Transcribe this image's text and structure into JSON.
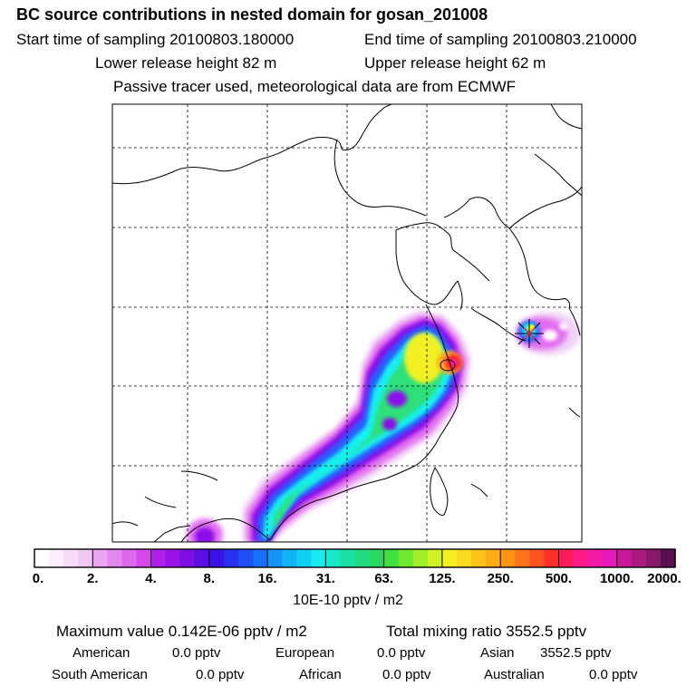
{
  "header": {
    "title": "BC  source contributions in nested domain for gosan_201008",
    "start_label": "Start time of sampling 20100803.180000",
    "end_label": "End time of sampling 20100803.210000",
    "lower_label": "Lower release height   82 m",
    "upper_label": "Upper release height   62 m",
    "info_line": "Passive tracer used, meteorological data are from ECMWF"
  },
  "chart_data": {
    "type": "heatmap",
    "title": "BC  source contributions in nested domain for gosan_201008",
    "colorbar": {
      "ticks": [
        "0.",
        "2.",
        "4.",
        "8.",
        "16.",
        "31.",
        "63.",
        "125.",
        "250.",
        "500.",
        "1000.",
        "2000."
      ],
      "unit": "10E-10 pptv / m2"
    },
    "colors": {
      "low": "#f2d6f5",
      "magenta": "#e36df0",
      "purple": "#8c10e8",
      "blue": "#2a5cff",
      "cyan": "#15f0f0",
      "green": "#2fe07a",
      "yellow": "#f2f020",
      "orange": "#ffab1a",
      "red": "#ff2030",
      "hotpink": "#ff1a9c"
    },
    "grid": true,
    "receptor_marker": "asterisk"
  },
  "stats": {
    "max_value": "Maximum value  0.142E-06 pptv / m2",
    "total_mixing": "Total mixing ratio     3552.5 pptv",
    "american": "American",
    "american_val": "0.0 pptv",
    "european": "European",
    "european_val": "0.0 pptv",
    "asian": "Asian",
    "asian_val": "3552.5 pptv",
    "south_american": "South American",
    "south_american_val": "0.0 pptv",
    "african": "African",
    "african_val": "0.0 pptv",
    "australian": "Australian",
    "australian_val": "0.0 pptv"
  }
}
